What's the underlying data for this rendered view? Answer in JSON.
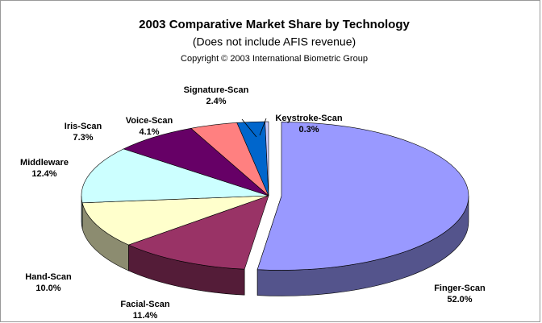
{
  "chart_data": {
    "type": "pie",
    "title": "2003 Comparative Market Share by Technology",
    "subtitle": "(Does not include AFIS revenue)",
    "copyright": "Copyright © 2003 International Biometric Group",
    "categories": [
      "Finger-Scan",
      "Facial-Scan",
      "Hand-Scan",
      "Middleware",
      "Iris-Scan",
      "Voice-Scan",
      "Signature-Scan",
      "Keystroke-Scan"
    ],
    "values": [
      52.0,
      11.4,
      10.0,
      12.4,
      7.3,
      4.1,
      2.4,
      0.3
    ],
    "value_labels": [
      "52.0%",
      "11.4%",
      "10.0%",
      "12.4%",
      "7.3%",
      "4.1%",
      "2.4%",
      "0.3%"
    ],
    "colors": [
      "#9999ff",
      "#993366",
      "#ffffcc",
      "#ccffff",
      "#660066",
      "#ff8080",
      "#0066cc",
      "#ccccff"
    ],
    "exploded": [
      0
    ]
  }
}
